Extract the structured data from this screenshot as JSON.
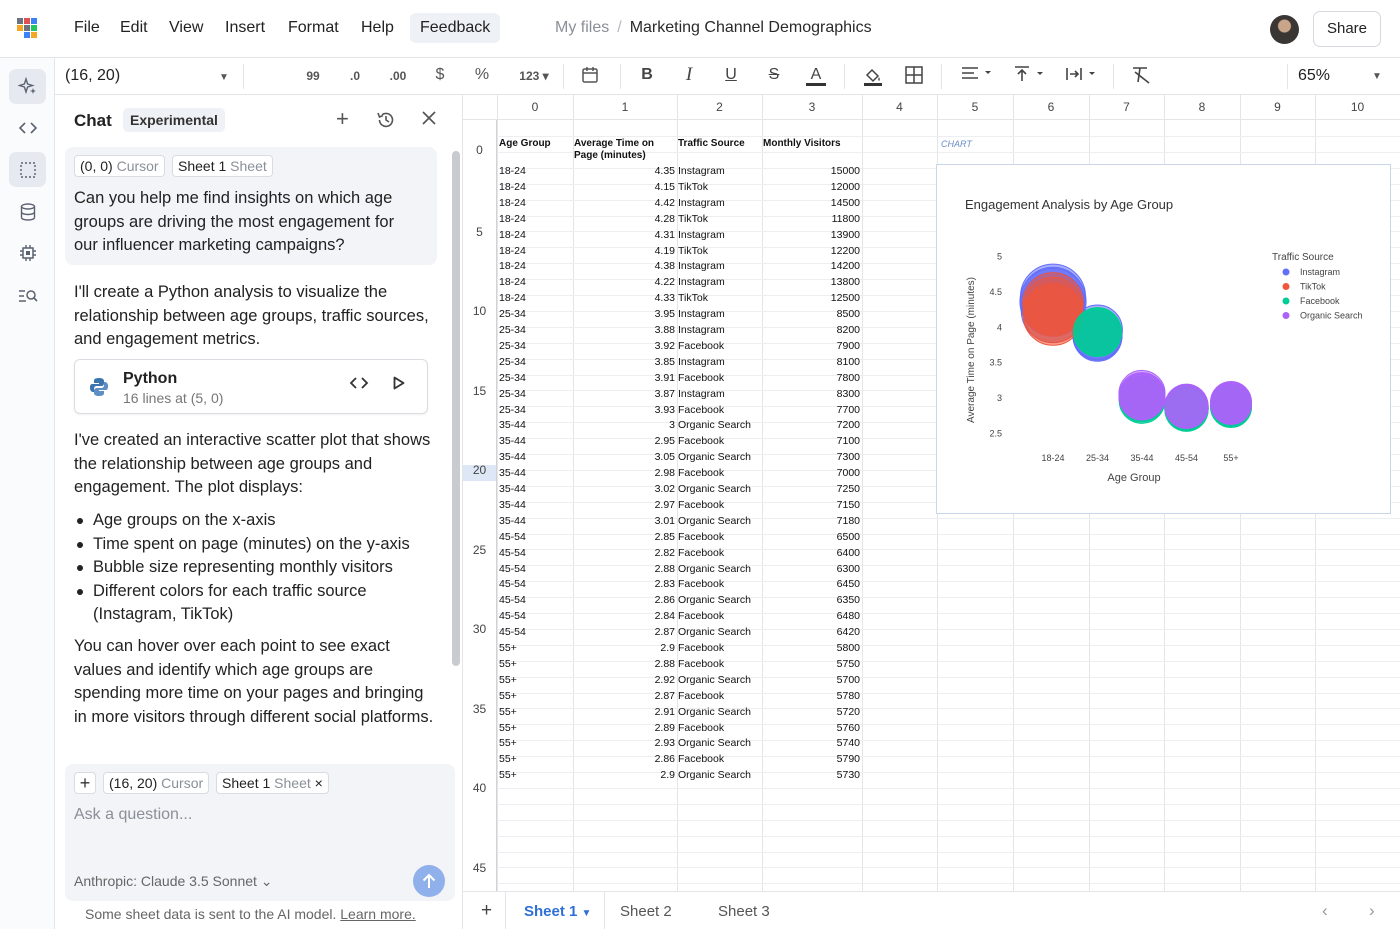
{
  "menu": {
    "file": "File",
    "edit": "Edit",
    "view": "View",
    "insert": "Insert",
    "format": "Format",
    "help": "Help",
    "feedback": "Feedback"
  },
  "breadcrumb": {
    "root": "My files",
    "sep": "/",
    "current": "Marketing Channel Demographics"
  },
  "share_label": "Share",
  "toolbar": {
    "cell_ref": "(16, 20)",
    "zoom": "65%",
    "dec_prec": "99",
    "dec_less": ".0",
    "dec_more": ".00",
    "currency": "$",
    "percent": "%",
    "number_fmt": "123"
  },
  "chat": {
    "title": "Chat",
    "badge": "Experimental",
    "user_cursor_chip": "(0, 0)",
    "user_cursor_word": "Cursor",
    "user_sheet_chip": "Sheet 1",
    "user_sheet_word": "Sheet",
    "user_message": "Can you help me find insights on which age groups are driving the most engagement for our influencer marketing campaigns?",
    "ai_intro": "I'll create a Python analysis to visualize the relationship between age groups, traffic sources, and engagement metrics.",
    "code_title": "Python",
    "code_sub": "16 lines at (5, 0)",
    "ai_result": "I've created an interactive scatter plot that shows the relationship between age groups and engagement. The plot displays:",
    "bullets": [
      "Age groups on the x-axis",
      "Time spent on page (minutes) on the y-axis",
      "Bubble size representing monthly visitors",
      "Different colors for each traffic source (Instagram, TikTok)"
    ],
    "ai_outro": "You can hover over each point to see exact values and identify which age groups are spending more time on your pages and bringing in more visitors through different social platforms.",
    "composer_cursor_chip": "(16, 20)",
    "composer_cursor_word": "Cursor",
    "composer_sheet_chip": "Sheet 1",
    "composer_sheet_word": "Sheet",
    "placeholder": "Ask a question...",
    "model": "Anthropic: Claude 3.5 Sonnet",
    "footnote": "Some sheet data is sent to the AI model.",
    "learn_more": "Learn more."
  },
  "columns": [
    "0",
    "1",
    "2",
    "3",
    "4",
    "5",
    "6",
    "7",
    "8",
    "9",
    "10"
  ],
  "row_labels": [
    "0",
    "5",
    "10",
    "15",
    "20",
    "25",
    "30",
    "35",
    "40",
    "45"
  ],
  "table": {
    "headers": [
      "Age Group",
      "Average Time on Page (minutes)",
      "Traffic Source",
      "Monthly Visitors"
    ],
    "rows": [
      [
        "18-24",
        "4.35",
        "Instagram",
        "15000"
      ],
      [
        "18-24",
        "4.15",
        "TikTok",
        "12000"
      ],
      [
        "18-24",
        "4.42",
        "Instagram",
        "14500"
      ],
      [
        "18-24",
        "4.28",
        "TikTok",
        "11800"
      ],
      [
        "18-24",
        "4.31",
        "Instagram",
        "13900"
      ],
      [
        "18-24",
        "4.19",
        "TikTok",
        "12200"
      ],
      [
        "18-24",
        "4.38",
        "Instagram",
        "14200"
      ],
      [
        "18-24",
        "4.22",
        "Instagram",
        "13800"
      ],
      [
        "18-24",
        "4.33",
        "TikTok",
        "12500"
      ],
      [
        "25-34",
        "3.95",
        "Instagram",
        "8500"
      ],
      [
        "25-34",
        "3.88",
        "Instagram",
        "8200"
      ],
      [
        "25-34",
        "3.92",
        "Facebook",
        "7900"
      ],
      [
        "25-34",
        "3.85",
        "Instagram",
        "8100"
      ],
      [
        "25-34",
        "3.91",
        "Facebook",
        "7800"
      ],
      [
        "25-34",
        "3.87",
        "Instagram",
        "8300"
      ],
      [
        "25-34",
        "3.93",
        "Facebook",
        "7700"
      ],
      [
        "35-44",
        "3",
        "Organic Search",
        "7200"
      ],
      [
        "35-44",
        "2.95",
        "Facebook",
        "7100"
      ],
      [
        "35-44",
        "3.05",
        "Organic Search",
        "7300"
      ],
      [
        "35-44",
        "2.98",
        "Facebook",
        "7000"
      ],
      [
        "35-44",
        "3.02",
        "Organic Search",
        "7250"
      ],
      [
        "35-44",
        "2.97",
        "Facebook",
        "7150"
      ],
      [
        "35-44",
        "3.01",
        "Organic Search",
        "7180"
      ],
      [
        "45-54",
        "2.85",
        "Facebook",
        "6500"
      ],
      [
        "45-54",
        "2.82",
        "Facebook",
        "6400"
      ],
      [
        "45-54",
        "2.88",
        "Organic Search",
        "6300"
      ],
      [
        "45-54",
        "2.83",
        "Facebook",
        "6450"
      ],
      [
        "45-54",
        "2.86",
        "Organic Search",
        "6350"
      ],
      [
        "45-54",
        "2.84",
        "Facebook",
        "6480"
      ],
      [
        "45-54",
        "2.87",
        "Organic Search",
        "6420"
      ],
      [
        "55+",
        "2.9",
        "Facebook",
        "5800"
      ],
      [
        "55+",
        "2.88",
        "Facebook",
        "5750"
      ],
      [
        "55+",
        "2.92",
        "Organic Search",
        "5700"
      ],
      [
        "55+",
        "2.87",
        "Facebook",
        "5780"
      ],
      [
        "55+",
        "2.91",
        "Organic Search",
        "5720"
      ],
      [
        "55+",
        "2.89",
        "Facebook",
        "5760"
      ],
      [
        "55+",
        "2.93",
        "Organic Search",
        "5740"
      ],
      [
        "55+",
        "2.86",
        "Facebook",
        "5790"
      ],
      [
        "55+",
        "2.9",
        "Organic Search",
        "5730"
      ]
    ]
  },
  "chart_marker": "CHART",
  "chart_data": {
    "type": "scatter",
    "title": "Engagement Analysis by Age Group",
    "xlabel": "Age Group",
    "ylabel": "Average Time on Page (minutes)",
    "categories": [
      "18-24",
      "25-34",
      "35-44",
      "45-54",
      "55+"
    ],
    "yticks": [
      "2.5",
      "3",
      "3.5",
      "4",
      "4.5",
      "5"
    ],
    "ylim": [
      2.35,
      5.15
    ],
    "legend_title": "Traffic Source",
    "legend_position": "right",
    "series": [
      {
        "name": "Instagram",
        "color": "#636efa",
        "points": [
          [
            "18-24",
            4.35,
            15000
          ],
          [
            "18-24",
            4.42,
            14500
          ],
          [
            "18-24",
            4.31,
            13900
          ],
          [
            "18-24",
            4.38,
            14200
          ],
          [
            "18-24",
            4.22,
            13800
          ],
          [
            "25-34",
            3.95,
            8500
          ],
          [
            "25-34",
            3.88,
            8200
          ],
          [
            "25-34",
            3.85,
            8100
          ],
          [
            "25-34",
            3.87,
            8300
          ]
        ]
      },
      {
        "name": "TikTok",
        "color": "#ef553b",
        "points": [
          [
            "18-24",
            4.15,
            12000
          ],
          [
            "18-24",
            4.28,
            11800
          ],
          [
            "18-24",
            4.19,
            12200
          ],
          [
            "18-24",
            4.33,
            12500
          ]
        ]
      },
      {
        "name": "Facebook",
        "color": "#00cc96",
        "points": [
          [
            "25-34",
            3.92,
            7900
          ],
          [
            "25-34",
            3.91,
            7800
          ],
          [
            "25-34",
            3.93,
            7700
          ],
          [
            "35-44",
            2.95,
            7100
          ],
          [
            "35-44",
            2.98,
            7000
          ],
          [
            "35-44",
            2.97,
            7150
          ],
          [
            "45-54",
            2.85,
            6500
          ],
          [
            "45-54",
            2.82,
            6400
          ],
          [
            "45-54",
            2.83,
            6450
          ],
          [
            "45-54",
            2.84,
            6480
          ],
          [
            "55+",
            2.9,
            5800
          ],
          [
            "55+",
            2.88,
            5750
          ],
          [
            "55+",
            2.87,
            5780
          ],
          [
            "55+",
            2.89,
            5760
          ],
          [
            "55+",
            2.86,
            5790
          ]
        ]
      },
      {
        "name": "Organic Search",
        "color": "#ab63fa",
        "points": [
          [
            "35-44",
            3,
            7200
          ],
          [
            "35-44",
            3.05,
            7300
          ],
          [
            "35-44",
            3.02,
            7250
          ],
          [
            "35-44",
            3.01,
            7180
          ],
          [
            "45-54",
            2.88,
            6300
          ],
          [
            "45-54",
            2.86,
            6350
          ],
          [
            "45-54",
            2.87,
            6420
          ],
          [
            "55+",
            2.92,
            5700
          ],
          [
            "55+",
            2.91,
            5720
          ],
          [
            "55+",
            2.93,
            5740
          ],
          [
            "55+",
            2.9,
            5730
          ]
        ]
      }
    ]
  },
  "sheets": {
    "tab1": "Sheet 1",
    "tab2": "Sheet 2",
    "tab3": "Sheet 3"
  },
  "colors": {
    "accent": "#2f6fd6",
    "send": "#8fb0ea"
  }
}
